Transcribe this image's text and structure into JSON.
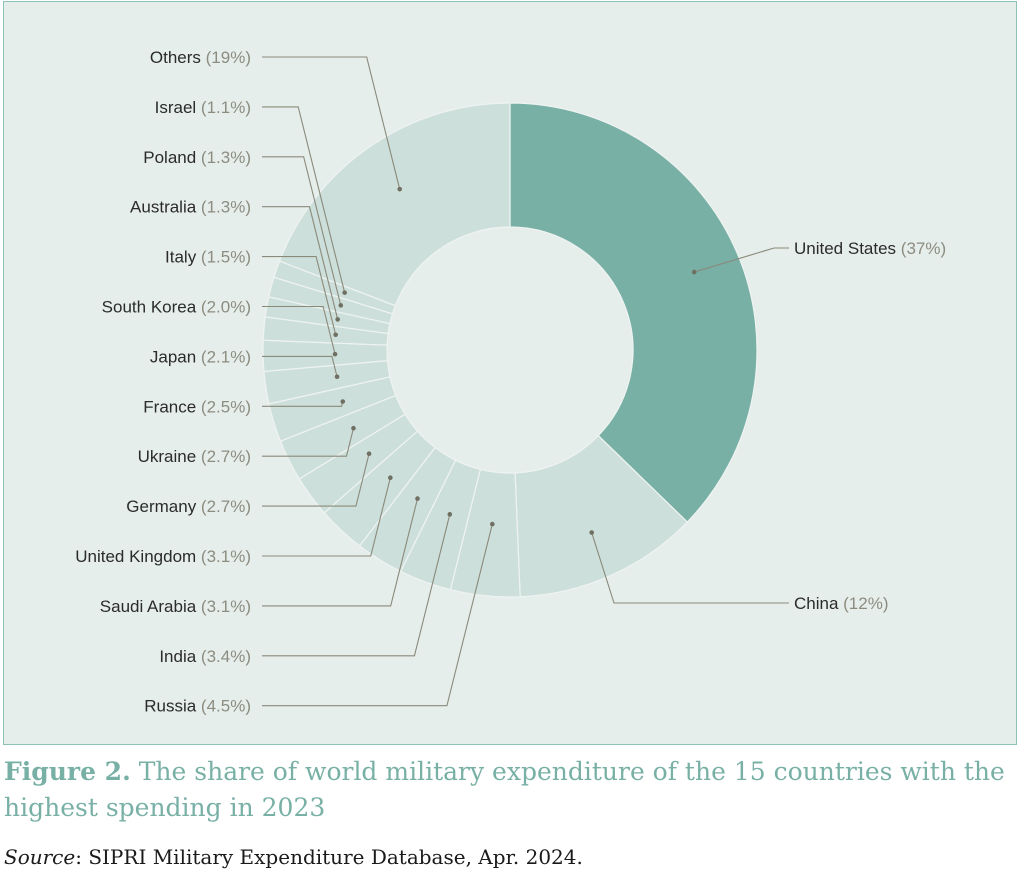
{
  "chart_data": {
    "type": "pie",
    "style": "donut",
    "categories": [
      "United States",
      "China",
      "Russia",
      "India",
      "Saudi Arabia",
      "United Kingdom",
      "Germany",
      "Ukraine",
      "France",
      "Japan",
      "South Korea",
      "Italy",
      "Australia",
      "Poland",
      "Israel",
      "Others"
    ],
    "values": [
      37,
      12,
      4.5,
      3.4,
      3.1,
      3.1,
      2.7,
      2.7,
      2.5,
      2.1,
      2.0,
      1.5,
      1.3,
      1.3,
      1.1,
      19
    ],
    "value_labels": [
      "(37%)",
      "(12%)",
      "(4.5%)",
      "(3.4%)",
      "(3.1%)",
      "(3.1%)",
      "(2.7%)",
      "(2.7%)",
      "(2.5%)",
      "(2.1%)",
      "(2.0%)",
      "(1.5%)",
      "(1.3%)",
      "(1.3%)",
      "(1.1%)",
      "(19%)"
    ],
    "highlight": "United States",
    "colors": {
      "highlight": "#78b0a5",
      "others": "#cddfdb",
      "background": "#e6eeec",
      "leader": "#8a8a7a",
      "label_text": "#2b2b2b",
      "value_text": "#8c8c80"
    }
  },
  "caption": {
    "label": "Figure 2.",
    "text": " The share of world military expenditure of the 15 countries with the highest spending in 2023"
  },
  "source": {
    "label": "Source",
    "text": ": SIPRI Military Expenditure Database, Apr. 2024."
  }
}
